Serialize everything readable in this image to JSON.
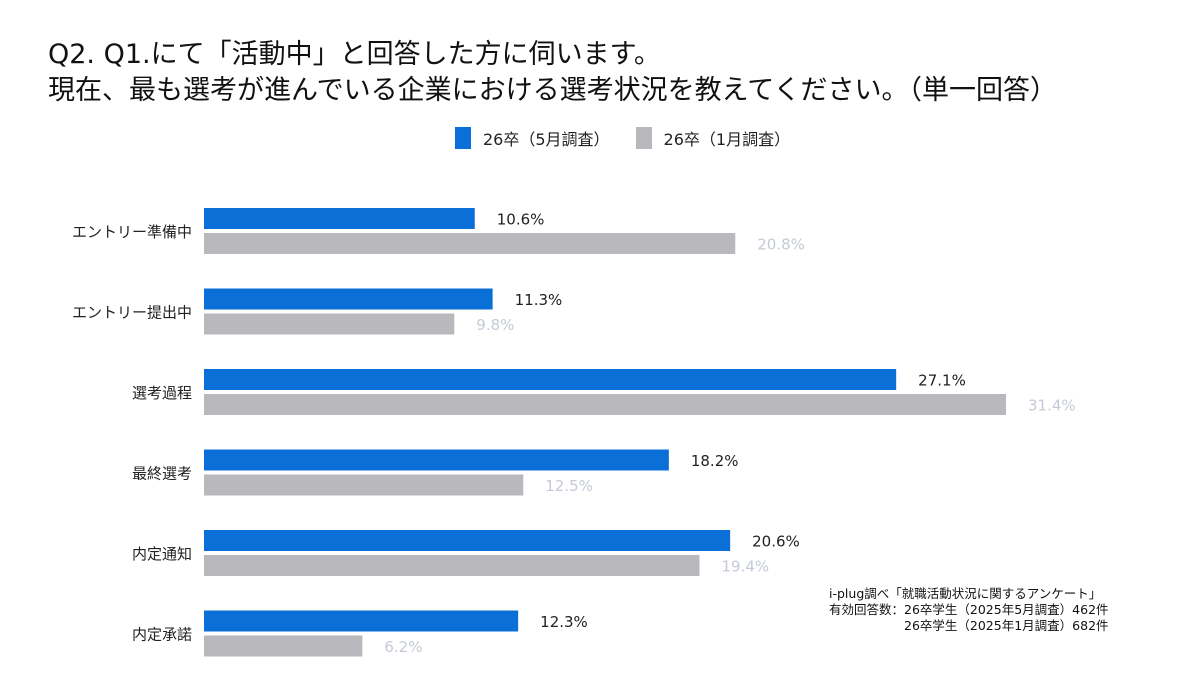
{
  "title_line1": "Q2. Q1.にて「活動中」と回答した方に伺います。",
  "title_line2": "現在、最も選考が進んでいる企業における選考状況を教えてください。（単一回答）",
  "chart_data": {
    "type": "bar",
    "orientation": "horizontal",
    "categories": [
      "エントリー準備中",
      "エントリー提出中",
      "選考過程",
      "最終選考",
      "内定通知",
      "内定承諾"
    ],
    "series": [
      {
        "name": "26卒（5月調査）",
        "color": "#0b6fd8",
        "label_color": "#222222",
        "values": [
          10.6,
          11.3,
          27.1,
          18.2,
          20.6,
          12.3
        ]
      },
      {
        "name": "26卒（1月調査）",
        "color": "#b9b9bd",
        "label_color": "#c5cad6",
        "values": [
          20.8,
          9.8,
          31.4,
          12.5,
          19.4,
          6.2
        ]
      }
    ],
    "value_format": "%",
    "xlim": [
      0,
      31.4
    ],
    "grid": false,
    "legend_position": "top"
  },
  "note": {
    "line1": "i-plug調べ「就職活動状況に関するアンケート」",
    "line2": "有効回答数：26卒学生（2025年5月調査）462件",
    "line3": "　　　　　　26卒学生（2025年1月調査）682件"
  }
}
